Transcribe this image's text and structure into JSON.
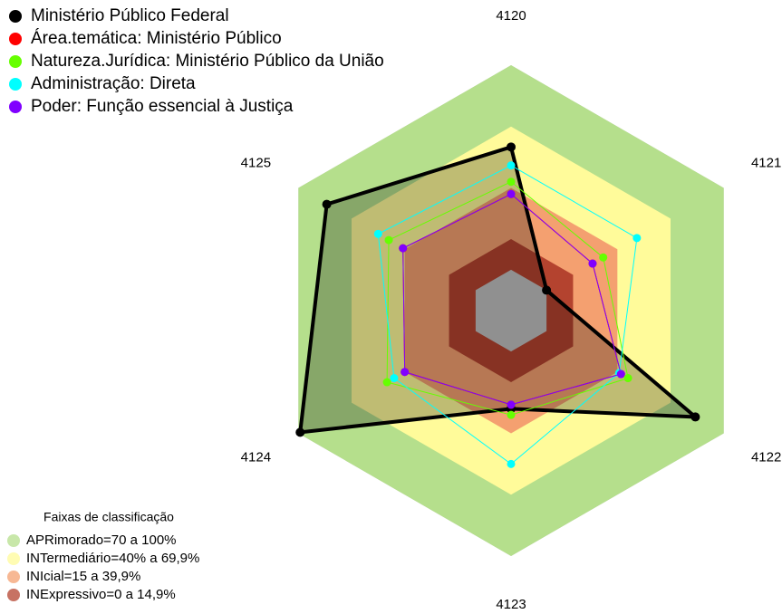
{
  "chart_data": {
    "type": "radar",
    "axes": [
      "4120",
      "4121",
      "4122",
      "4123",
      "4124",
      "4125"
    ],
    "rlim": [
      -20,
      100
    ],
    "series": [
      {
        "name": "Ministério Público Federal",
        "color": "#000000",
        "values": [
          60,
          0,
          84,
          28,
          99,
          84
        ]
      },
      {
        "name": "Área.temática: Ministério Público",
        "color": "#ff0000",
        "values": [
          37,
          26,
          42,
          26,
          40,
          41
        ]
      },
      {
        "name": "Natureza.Jurídica: Ministério Público da União",
        "color": "#66ff00",
        "values": [
          43,
          32,
          46,
          31,
          50,
          49
        ]
      },
      {
        "name": "Administração: Direta",
        "color": "#00ffff",
        "values": [
          51,
          51,
          41,
          55,
          46,
          55
        ]
      },
      {
        "name": "Poder: Função essencial à Justiça",
        "color": "#8000ff",
        "values": [
          37,
          26,
          42,
          26,
          40,
          41
        ]
      }
    ],
    "bands_title": "Faixas de classificação",
    "bands": [
      {
        "label": "APRimorado=70 a 100%",
        "from": 70,
        "to": 100,
        "color": "#b5df8c"
      },
      {
        "label": "INTermediário=40% a 69,9%",
        "from": 40,
        "to": 70,
        "color": "#fffb9a"
      },
      {
        "label": "INIcial=15 a 39,9%",
        "from": 15,
        "to": 40,
        "color": "#f4a070"
      },
      {
        "label": "INExpressivo=0 a 14,9%",
        "from": 0,
        "to": 15,
        "color": "#b4432f"
      }
    ]
  }
}
